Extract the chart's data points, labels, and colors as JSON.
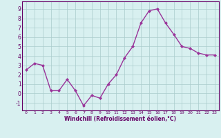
{
  "x": [
    0,
    1,
    2,
    3,
    4,
    5,
    6,
    7,
    8,
    9,
    10,
    11,
    12,
    13,
    14,
    15,
    16,
    17,
    18,
    19,
    20,
    21,
    22,
    23
  ],
  "y": [
    2.5,
    3.2,
    3.0,
    0.3,
    0.3,
    1.5,
    0.3,
    -1.3,
    -0.2,
    -0.5,
    1.0,
    2.0,
    3.8,
    5.0,
    7.5,
    8.8,
    9.0,
    7.5,
    6.3,
    5.0,
    4.8,
    4.3,
    4.1,
    4.1
  ],
  "line_color": "#993399",
  "marker": "D",
  "marker_size": 2,
  "linewidth": 1.0,
  "xlabel": "Windchill (Refroidissement éolien,°C)",
  "xlim": [
    -0.5,
    23.5
  ],
  "ylim": [
    -1.8,
    9.8
  ],
  "yticks": [
    -1,
    0,
    1,
    2,
    3,
    4,
    5,
    6,
    7,
    8,
    9
  ],
  "xticks": [
    0,
    1,
    2,
    3,
    4,
    5,
    6,
    7,
    8,
    9,
    10,
    11,
    12,
    13,
    14,
    15,
    16,
    17,
    18,
    19,
    20,
    21,
    22,
    23
  ],
  "xtick_labels": [
    "0",
    "1",
    "2",
    "3",
    "4",
    "5",
    "6",
    "7",
    "8",
    "9",
    "10",
    "11",
    "12",
    "13",
    "14",
    "15",
    "16",
    "17",
    "18",
    "19",
    "20",
    "21",
    "22",
    "23"
  ],
  "bg_color": "#d8f0f0",
  "grid_color": "#aacccc",
  "tick_color": "#660066",
  "label_color": "#660066"
}
